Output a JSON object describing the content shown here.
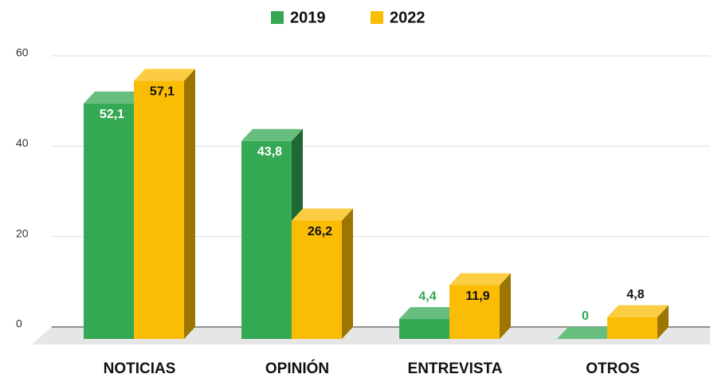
{
  "chart_data": {
    "type": "bar3d",
    "categories": [
      "NOTICIAS",
      "OPINIÓN",
      "ENTREVISTA",
      "OTROS"
    ],
    "series": [
      {
        "name": "2019",
        "color": "#34a853",
        "values": [
          52.1,
          43.8,
          4.4,
          0
        ],
        "value_labels": [
          "52,1",
          "43,8",
          "4,4",
          "0"
        ]
      },
      {
        "name": "2022",
        "color": "#fbbc04",
        "values": [
          57.1,
          26.2,
          11.9,
          4.8
        ],
        "value_labels": [
          "57,1",
          "26,2",
          "11,9",
          "4,8"
        ]
      }
    ],
    "ylim": [
      0,
      60
    ],
    "yticks": [
      0,
      20,
      40,
      60
    ],
    "grid": true,
    "legend": "top"
  }
}
